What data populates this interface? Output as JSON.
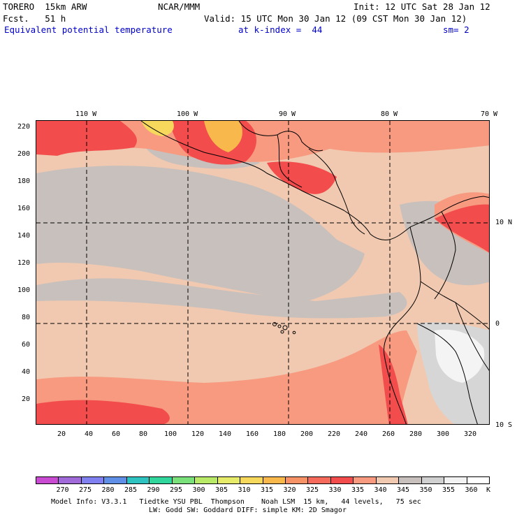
{
  "header": {
    "model": "TORERO  15km ARW",
    "org": "NCAR/MMM",
    "init": "Init: 12 UTC Sat 28 Jan 12",
    "fcst": "Fcst.   51 h",
    "valid": "Valid: 15 UTC Mon 30 Jan 12 (09 CST Mon 30 Jan 12)",
    "field": "Equivalent potential temperature",
    "level": "at k-index =  44",
    "smooth": "sm= 2"
  },
  "map": {
    "lon_labels": [
      "110 W",
      "100 W",
      "90 W",
      "80 W",
      "70 W"
    ],
    "lat_labels": [
      "10 N",
      "0",
      "10 S"
    ],
    "y_ticks": [
      "220",
      "200",
      "180",
      "160",
      "140",
      "120",
      "100",
      "80",
      "60",
      "40",
      "20"
    ],
    "x_ticks": [
      "20",
      "40",
      "60",
      "80",
      "100",
      "120",
      "140",
      "160",
      "180",
      "200",
      "220",
      "240",
      "260",
      "280",
      "300",
      "320"
    ]
  },
  "colorbar": {
    "labels": [
      "270",
      "275",
      "280",
      "285",
      "290",
      "295",
      "300",
      "305",
      "310",
      "315",
      "320",
      "325",
      "330",
      "335",
      "340",
      "345",
      "350",
      "355",
      "360"
    ],
    "unit": "K",
    "colors": [
      "#c84bd2",
      "#a06ad8",
      "#8080f0",
      "#5f8fe6",
      "#2ec3c0",
      "#30d69b",
      "#7ae07a",
      "#b8ea68",
      "#e6ec6a",
      "#f6d95c",
      "#f8b84c",
      "#f69266",
      "#f56a5a",
      "#f24c4c",
      "#f79a80",
      "#f1c9b0",
      "#c8c0bc",
      "#d0d0d0",
      "#f2f2f2",
      "#ffffff"
    ]
  },
  "footer": {
    "line1": "Model Info: V3.3.1   Tiedtke YSU PBL  Thompson    Noah LSM  15 km,   44 levels,   75 sec",
    "line2": "LW: Godd SW: Goddard DIFF: simple KM: 2D Smagor"
  }
}
